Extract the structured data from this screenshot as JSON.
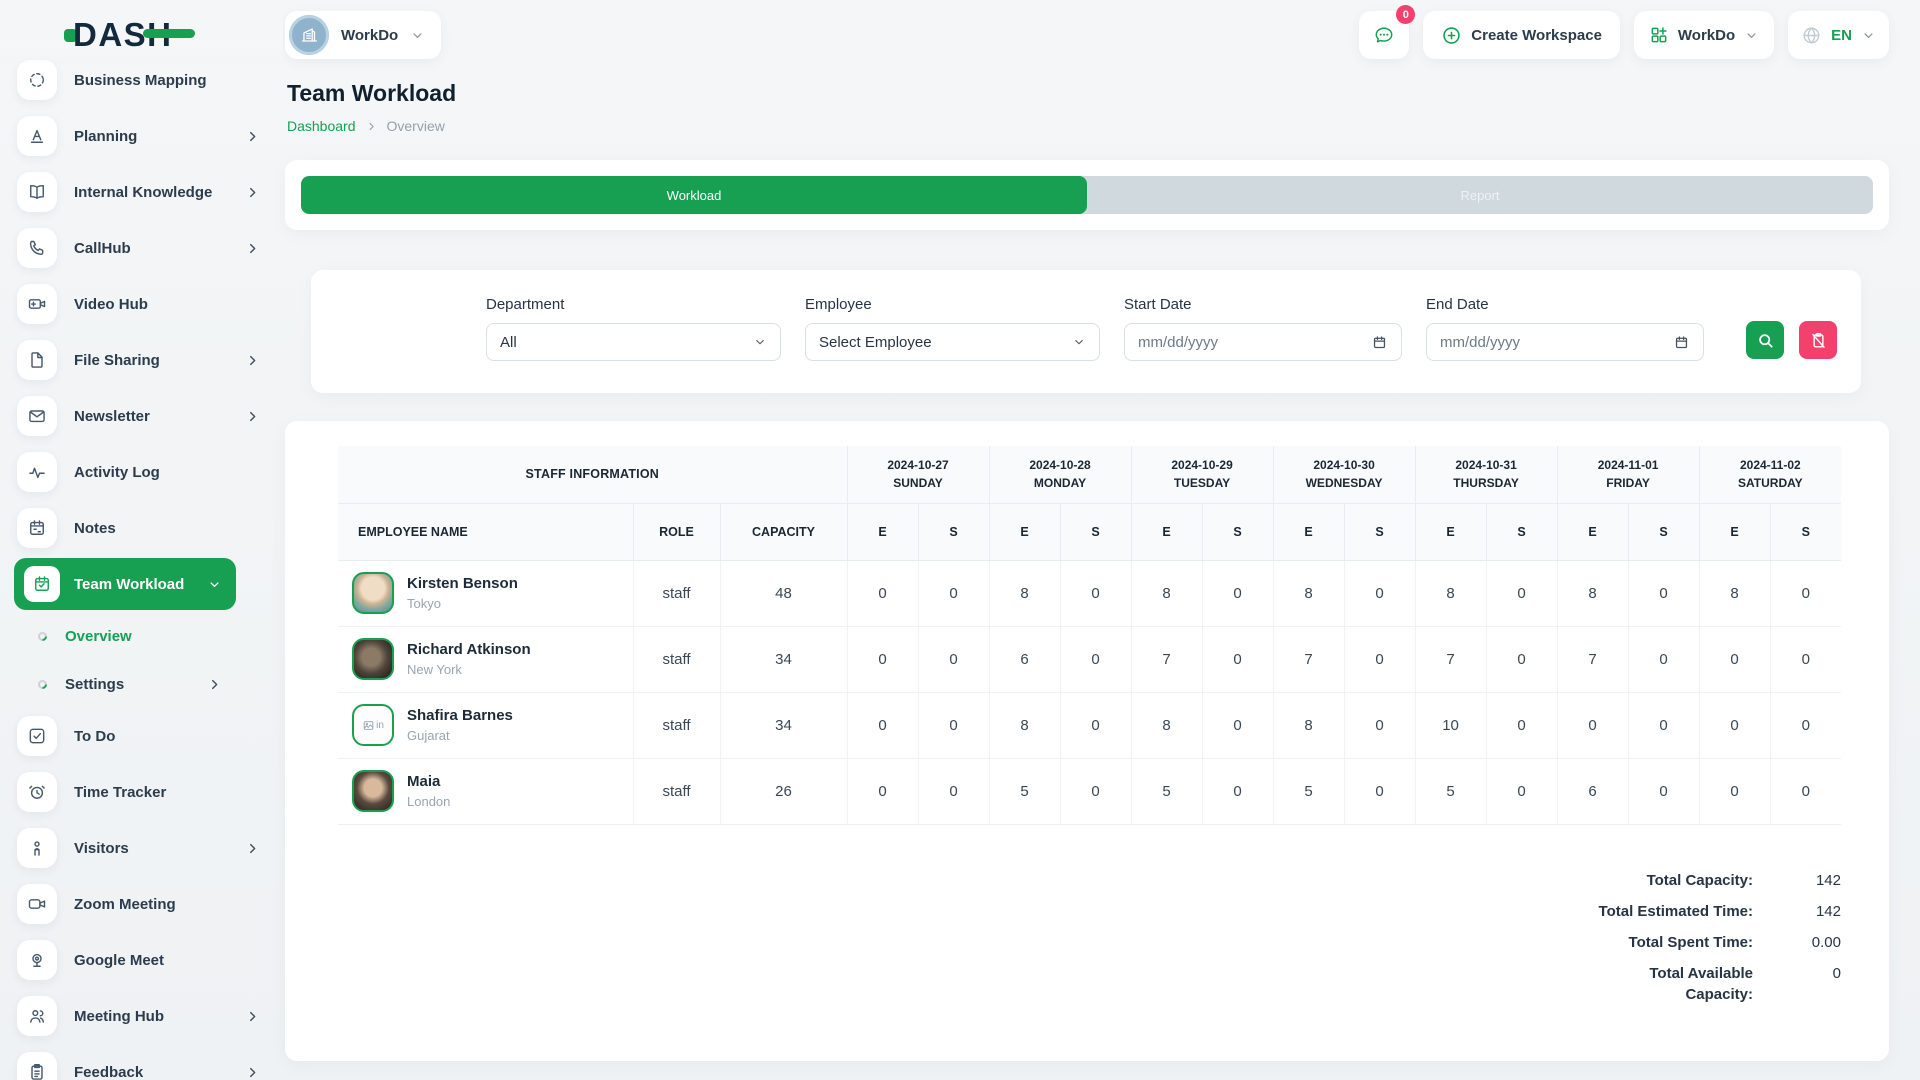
{
  "brand": {
    "name": "DASH"
  },
  "topbar": {
    "workspace_label": "WorkDo",
    "messages_badge": "0",
    "create_workspace_label": "Create Workspace",
    "workspace_menu_label": "WorkDo",
    "language_label": "EN"
  },
  "page": {
    "title": "Team Workload",
    "breadcrumb_home": "Dashboard",
    "breadcrumb_current": "Overview"
  },
  "tabs": {
    "workload_label": "Workload",
    "report_label": "Report"
  },
  "filters": {
    "department_label": "Department",
    "department_value": "All",
    "employee_label": "Employee",
    "employee_value": "Select Employee",
    "start_date_label": "Start Date",
    "start_date_placeholder": "mm/dd/yyyy",
    "end_date_label": "End Date",
    "end_date_placeholder": "mm/dd/yyyy"
  },
  "sidebar": {
    "items": [
      {
        "label": "Business Mapping",
        "icon": "business-mapping-icon",
        "chevron": "none"
      },
      {
        "label": "Planning",
        "icon": "planning-icon",
        "chevron": "right"
      },
      {
        "label": "Internal Knowledge",
        "icon": "book-icon",
        "chevron": "right"
      },
      {
        "label": "CallHub",
        "icon": "phone-icon",
        "chevron": "right"
      },
      {
        "label": "Video Hub",
        "icon": "video-plus-icon",
        "chevron": "none"
      },
      {
        "label": "File Sharing",
        "icon": "file-icon",
        "chevron": "right"
      },
      {
        "label": "Newsletter",
        "icon": "mail-icon",
        "chevron": "right"
      },
      {
        "label": "Activity Log",
        "icon": "activity-icon",
        "chevron": "none"
      },
      {
        "label": "Notes",
        "icon": "calendar-icon",
        "chevron": "none"
      },
      {
        "label": "Team Workload",
        "icon": "calendar-check-icon",
        "chevron": "down",
        "active": true,
        "children": [
          {
            "label": "Overview",
            "active": true,
            "chevron": "none"
          },
          {
            "label": "Settings",
            "active": false,
            "chevron": "right"
          }
        ]
      },
      {
        "label": "To Do",
        "icon": "check-square-icon",
        "chevron": "none"
      },
      {
        "label": "Time Tracker",
        "icon": "alarm-clock-icon",
        "chevron": "none"
      },
      {
        "label": "Visitors",
        "icon": "person-icon",
        "chevron": "right"
      },
      {
        "label": "Zoom Meeting",
        "icon": "video-icon",
        "chevron": "none"
      },
      {
        "label": "Google Meet",
        "icon": "webcam-icon",
        "chevron": "none"
      },
      {
        "label": "Meeting Hub",
        "icon": "users-icon",
        "chevron": "right"
      },
      {
        "label": "Feedback",
        "icon": "clipboard-icon",
        "chevron": "right"
      }
    ]
  },
  "table": {
    "group_header": "STAFF INFORMATION",
    "columns": {
      "employee": "EMPLOYEE NAME",
      "role": "ROLE",
      "capacity": "CAPACITY"
    },
    "sub_columns": [
      "E",
      "S"
    ],
    "days": [
      {
        "date": "2024-10-27",
        "weekday": "SUNDAY"
      },
      {
        "date": "2024-10-28",
        "weekday": "MONDAY"
      },
      {
        "date": "2024-10-29",
        "weekday": "TUESDAY"
      },
      {
        "date": "2024-10-30",
        "weekday": "WEDNESDAY"
      },
      {
        "date": "2024-10-31",
        "weekday": "THURSDAY"
      },
      {
        "date": "2024-11-01",
        "weekday": "FRIDAY"
      },
      {
        "date": "2024-11-02",
        "weekday": "SATURDAY"
      }
    ],
    "rows": [
      {
        "name": "Kirsten Benson",
        "location": "Tokyo",
        "role": "staff",
        "capacity": "48",
        "avatar": "photo-man",
        "days": [
          [
            0,
            0
          ],
          [
            8,
            0
          ],
          [
            8,
            0
          ],
          [
            8,
            0
          ],
          [
            8,
            0
          ],
          [
            8,
            0
          ],
          [
            8,
            0
          ]
        ]
      },
      {
        "name": "Richard Atkinson",
        "location": "New York",
        "role": "staff",
        "capacity": "34",
        "avatar": "photo-dark",
        "days": [
          [
            0,
            0
          ],
          [
            6,
            0
          ],
          [
            7,
            0
          ],
          [
            7,
            0
          ],
          [
            7,
            0
          ],
          [
            7,
            0
          ],
          [
            0,
            0
          ]
        ]
      },
      {
        "name": "Shafira Barnes",
        "location": "Gujarat",
        "role": "staff",
        "capacity": "34",
        "avatar": "broken-image",
        "days": [
          [
            0,
            0
          ],
          [
            8,
            0
          ],
          [
            8,
            0
          ],
          [
            8,
            0
          ],
          [
            10,
            0
          ],
          [
            0,
            0
          ],
          [
            0,
            0
          ]
        ]
      },
      {
        "name": "Maia",
        "location": "London",
        "role": "staff",
        "capacity": "26",
        "avatar": "photo-woman",
        "days": [
          [
            0,
            0
          ],
          [
            5,
            0
          ],
          [
            5,
            0
          ],
          [
            5,
            0
          ],
          [
            5,
            0
          ],
          [
            6,
            0
          ],
          [
            0,
            0
          ]
        ]
      }
    ]
  },
  "totals": [
    {
      "label": "Total Capacity:",
      "value": "142"
    },
    {
      "label": "Total Estimated Time:",
      "value": "142"
    },
    {
      "label": "Total Spent Time:",
      "value": "0.00"
    },
    {
      "label": "Total Available Capacity:",
      "value": "0"
    }
  ],
  "colors": {
    "primary_green": "#17a052",
    "pink": "#f1416c",
    "navy": "#13293c"
  }
}
